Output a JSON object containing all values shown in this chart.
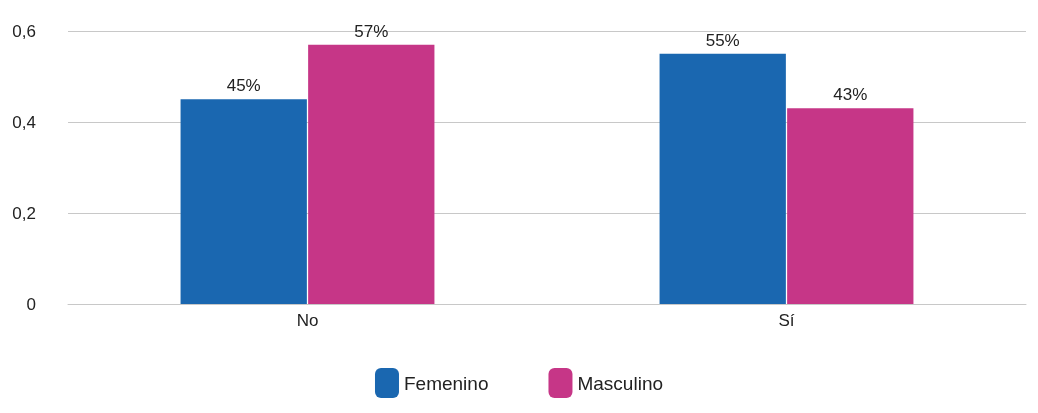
{
  "chart_data": {
    "type": "bar",
    "categories": [
      "No",
      "Sí"
    ],
    "series": [
      {
        "name": "Femenino",
        "color": "#1a67b0",
        "values": [
          0.45,
          0.55
        ],
        "value_labels": [
          "45%",
          "55%"
        ]
      },
      {
        "name": "Masculino",
        "color": "#c63687",
        "values": [
          0.57,
          0.43
        ],
        "value_labels": [
          "57%",
          "43%"
        ]
      }
    ],
    "ylim": [
      0,
      0.6
    ],
    "yticks": [
      0,
      {
        "value": 0.2,
        "label": "0,2"
      },
      {
        "value": 0.4,
        "label": "0,4"
      },
      {
        "value": 0.6,
        "label": "0,6"
      }
    ],
    "grid": "y",
    "legend": "bottom"
  }
}
